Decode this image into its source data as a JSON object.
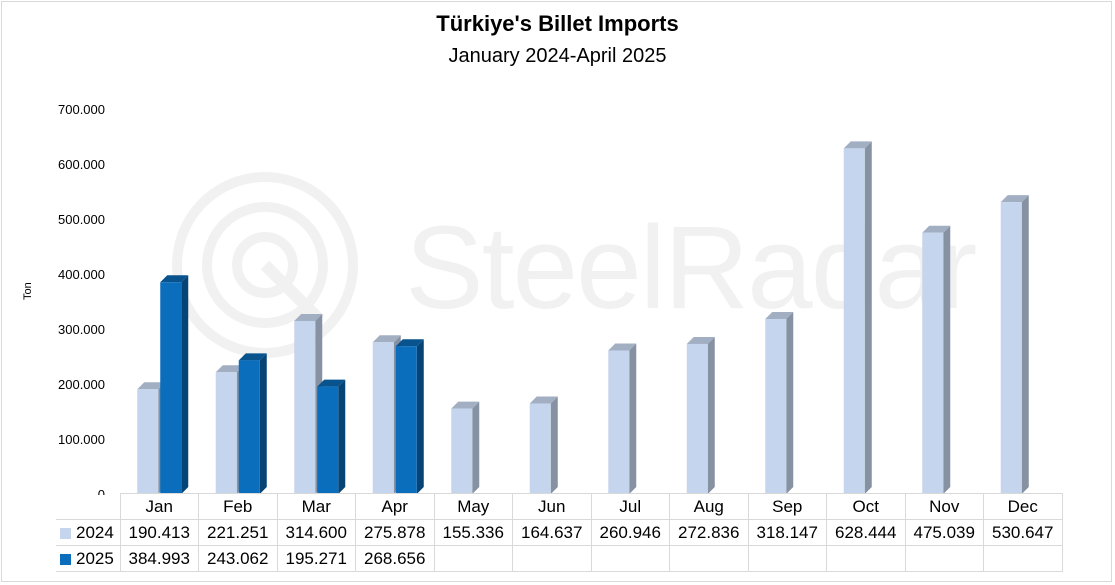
{
  "chart_data": {
    "type": "bar",
    "title": "Türkiye's Billet Imports",
    "subtitle": "January 2024-April 2025",
    "ylabel": "Ton",
    "ylim": [
      0,
      700000
    ],
    "yticks": [
      0,
      100000,
      200000,
      300000,
      400000,
      500000,
      600000,
      700000
    ],
    "ytick_labels": [
      "0",
      "100.000",
      "200.000",
      "300.000",
      "400.000",
      "500.000",
      "600.000",
      "700.000"
    ],
    "categories": [
      "Jan",
      "Feb",
      "Mar",
      "Apr",
      "May",
      "Jun",
      "Jul",
      "Aug",
      "Sep",
      "Oct",
      "Nov",
      "Dec"
    ],
    "series": [
      {
        "name": "2024",
        "color": "#c5d5ee",
        "values": [
          190413,
          221251,
          314600,
          275878,
          155336,
          164637,
          260946,
          272836,
          318147,
          628444,
          475039,
          530647
        ],
        "labels": [
          "190.413",
          "221.251",
          "314.600",
          "275.878",
          "155.336",
          "164.637",
          "260.946",
          "272.836",
          "318.147",
          "628.444",
          "475.039",
          "530.647"
        ]
      },
      {
        "name": "2025",
        "color": "#0a6ebd",
        "values": [
          384993,
          243062,
          195271,
          268656,
          null,
          null,
          null,
          null,
          null,
          null,
          null,
          null
        ],
        "labels": [
          "384.993",
          "243.062",
          "195.271",
          "268.656",
          "",
          "",
          "",
          "",
          "",
          "",
          "",
          ""
        ]
      }
    ],
    "grid": false,
    "legend": "table-bottom"
  },
  "watermark": "SteelRadar"
}
